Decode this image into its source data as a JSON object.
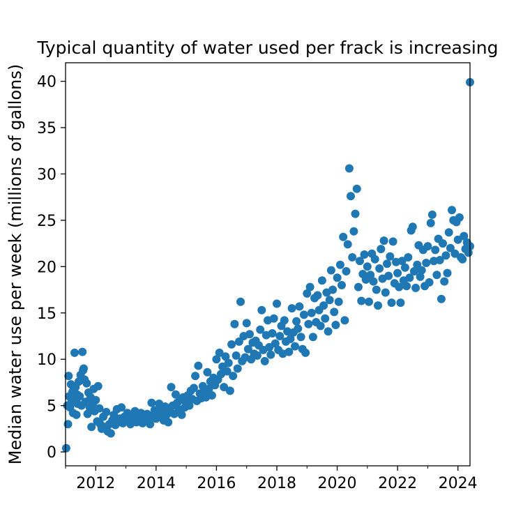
{
  "chart_data": {
    "type": "scatter",
    "title": "Typical quantity of water used per frack is increasing",
    "xlabel": "",
    "ylabel": "Median water use per week (millions of gallons)",
    "xlim": [
      2011.0,
      2024.4
    ],
    "ylim": [
      -1.5,
      42
    ],
    "x_ticks": [
      2012,
      2014,
      2016,
      2018,
      2020,
      2022,
      2024
    ],
    "x_tick_labels": [
      "2012",
      "2014",
      "2016",
      "2018",
      "2020",
      "2022",
      "2024"
    ],
    "y_ticks": [
      0,
      5,
      10,
      15,
      20,
      25,
      30,
      35,
      40
    ],
    "y_tick_labels": [
      "0",
      "5",
      "10",
      "15",
      "20",
      "25",
      "30",
      "35",
      "40"
    ],
    "grid": false,
    "marker_color": "#1f77b4",
    "points": [
      [
        2011.02,
        0.4
      ],
      [
        2011.06,
        5.0
      ],
      [
        2011.08,
        3.0
      ],
      [
        2011.1,
        8.2
      ],
      [
        2011.12,
        6.0
      ],
      [
        2011.15,
        4.8
      ],
      [
        2011.18,
        7.3
      ],
      [
        2011.2,
        5.5
      ],
      [
        2011.23,
        6.5
      ],
      [
        2011.25,
        4.2
      ],
      [
        2011.28,
        5.8
      ],
      [
        2011.3,
        10.7
      ],
      [
        2011.33,
        7.0
      ],
      [
        2011.36,
        4.0
      ],
      [
        2011.38,
        6.2
      ],
      [
        2011.4,
        5.2
      ],
      [
        2011.44,
        7.6
      ],
      [
        2011.47,
        6.0
      ],
      [
        2011.5,
        8.3
      ],
      [
        2011.53,
        5.0
      ],
      [
        2011.56,
        10.8
      ],
      [
        2011.58,
        8.8
      ],
      [
        2011.6,
        9.0
      ],
      [
        2011.63,
        7.8
      ],
      [
        2011.66,
        5.4
      ],
      [
        2011.7,
        7.4
      ],
      [
        2011.73,
        4.1
      ],
      [
        2011.76,
        6.4
      ],
      [
        2011.8,
        4.8
      ],
      [
        2011.83,
        5.9
      ],
      [
        2011.86,
        2.7
      ],
      [
        2011.9,
        5.2
      ],
      [
        2011.93,
        6.8
      ],
      [
        2011.96,
        4.4
      ],
      [
        2012.0,
        5.6
      ],
      [
        2012.05,
        3.3
      ],
      [
        2012.08,
        7.1
      ],
      [
        2012.12,
        4.7
      ],
      [
        2012.15,
        3.0
      ],
      [
        2012.2,
        2.5
      ],
      [
        2012.25,
        3.8
      ],
      [
        2012.3,
        2.7
      ],
      [
        2012.35,
        4.3
      ],
      [
        2012.4,
        2.2
      ],
      [
        2012.45,
        3.0
      ],
      [
        2012.5,
        2.0
      ],
      [
        2012.55,
        3.4
      ],
      [
        2012.6,
        4.0
      ],
      [
        2012.65,
        2.9
      ],
      [
        2012.7,
        4.6
      ],
      [
        2012.75,
        3.2
      ],
      [
        2012.8,
        3.6
      ],
      [
        2012.85,
        4.8
      ],
      [
        2012.9,
        3.1
      ],
      [
        2012.95,
        3.8
      ],
      [
        2013.0,
        3.3
      ],
      [
        2013.05,
        4.2
      ],
      [
        2013.1,
        3.6
      ],
      [
        2013.15,
        3.0
      ],
      [
        2013.2,
        4.0
      ],
      [
        2013.25,
        3.5
      ],
      [
        2013.3,
        4.4
      ],
      [
        2013.35,
        3.2
      ],
      [
        2013.4,
        3.9
      ],
      [
        2013.45,
        3.4
      ],
      [
        2013.5,
        4.2
      ],
      [
        2013.55,
        3.1
      ],
      [
        2013.6,
        3.7
      ],
      [
        2013.65,
        3.3
      ],
      [
        2013.7,
        4.1
      ],
      [
        2013.75,
        3.5
      ],
      [
        2013.8,
        3.0
      ],
      [
        2013.85,
        5.3
      ],
      [
        2013.9,
        3.9
      ],
      [
        2013.95,
        4.5
      ],
      [
        2014.0,
        3.6
      ],
      [
        2014.05,
        4.3
      ],
      [
        2014.1,
        5.2
      ],
      [
        2014.15,
        3.8
      ],
      [
        2014.2,
        4.6
      ],
      [
        2014.25,
        3.4
      ],
      [
        2014.3,
        4.9
      ],
      [
        2014.35,
        4.0
      ],
      [
        2014.4,
        3.2
      ],
      [
        2014.45,
        4.4
      ],
      [
        2014.5,
        7.0
      ],
      [
        2014.55,
        5.0
      ],
      [
        2014.6,
        4.1
      ],
      [
        2014.65,
        6.2
      ],
      [
        2014.7,
        5.3
      ],
      [
        2014.75,
        4.6
      ],
      [
        2014.8,
        5.6
      ],
      [
        2014.85,
        4.0
      ],
      [
        2014.9,
        5.9
      ],
      [
        2014.95,
        4.8
      ],
      [
        2015.0,
        5.4
      ],
      [
        2015.05,
        6.1
      ],
      [
        2015.1,
        5.0
      ],
      [
        2015.15,
        6.6
      ],
      [
        2015.2,
        5.7
      ],
      [
        2015.25,
        6.9
      ],
      [
        2015.3,
        8.2
      ],
      [
        2015.35,
        5.5
      ],
      [
        2015.4,
        9.3
      ],
      [
        2015.45,
        6.3
      ],
      [
        2015.5,
        5.8
      ],
      [
        2015.55,
        7.1
      ],
      [
        2015.6,
        6.4
      ],
      [
        2015.65,
        5.9
      ],
      [
        2015.7,
        8.6
      ],
      [
        2015.75,
        6.8
      ],
      [
        2015.8,
        7.6
      ],
      [
        2015.85,
        6.1
      ],
      [
        2015.9,
        8.0
      ],
      [
        2015.95,
        7.2
      ],
      [
        2016.0,
        10.0
      ],
      [
        2016.05,
        7.8
      ],
      [
        2016.1,
        10.7
      ],
      [
        2016.15,
        8.4
      ],
      [
        2016.2,
        9.2
      ],
      [
        2016.25,
        7.0
      ],
      [
        2016.3,
        10.3
      ],
      [
        2016.35,
        8.7
      ],
      [
        2016.4,
        9.6
      ],
      [
        2016.45,
        6.6
      ],
      [
        2016.5,
        11.6
      ],
      [
        2016.55,
        8.2
      ],
      [
        2016.6,
        13.8
      ],
      [
        2016.65,
        10.4
      ],
      [
        2016.7,
        9.0
      ],
      [
        2016.75,
        11.9
      ],
      [
        2016.8,
        16.2
      ],
      [
        2016.85,
        9.8
      ],
      [
        2016.9,
        12.5
      ],
      [
        2016.95,
        10.2
      ],
      [
        2017.0,
        13.9
      ],
      [
        2017.05,
        11.1
      ],
      [
        2017.1,
        12.7
      ],
      [
        2017.15,
        10.0
      ],
      [
        2017.2,
        11.8
      ],
      [
        2017.25,
        10.6
      ],
      [
        2017.3,
        12.0
      ],
      [
        2017.35,
        10.4
      ],
      [
        2017.4,
        11.5
      ],
      [
        2017.45,
        13.2
      ],
      [
        2017.5,
        15.3
      ],
      [
        2017.55,
        11.0
      ],
      [
        2017.6,
        9.8
      ],
      [
        2017.65,
        12.6
      ],
      [
        2017.7,
        14.2
      ],
      [
        2017.75,
        11.3
      ],
      [
        2017.8,
        10.5
      ],
      [
        2017.85,
        12.8
      ],
      [
        2017.9,
        14.4
      ],
      [
        2017.95,
        11.7
      ],
      [
        2018.0,
        16.0
      ],
      [
        2018.05,
        11.0
      ],
      [
        2018.1,
        12.5
      ],
      [
        2018.15,
        13.6
      ],
      [
        2018.2,
        10.6
      ],
      [
        2018.25,
        14.2
      ],
      [
        2018.3,
        11.9
      ],
      [
        2018.35,
        13.0
      ],
      [
        2018.4,
        10.8
      ],
      [
        2018.45,
        12.2
      ],
      [
        2018.5,
        15.5
      ],
      [
        2018.55,
        12.9
      ],
      [
        2018.6,
        11.4
      ],
      [
        2018.65,
        14.1
      ],
      [
        2018.7,
        13.3
      ],
      [
        2018.75,
        15.7
      ],
      [
        2018.8,
        12.4
      ],
      [
        2018.85,
        11.1
      ],
      [
        2018.9,
        14.8
      ],
      [
        2018.95,
        10.7
      ],
      [
        2019.0,
        17.1
      ],
      [
        2019.05,
        13.8
      ],
      [
        2019.1,
        17.8
      ],
      [
        2019.15,
        15.0
      ],
      [
        2019.2,
        12.4
      ],
      [
        2019.25,
        16.6
      ],
      [
        2019.3,
        14.0
      ],
      [
        2019.35,
        16.9
      ],
      [
        2019.4,
        15.3
      ],
      [
        2019.45,
        13.6
      ],
      [
        2019.5,
        18.5
      ],
      [
        2019.55,
        15.8
      ],
      [
        2019.6,
        14.4
      ],
      [
        2019.65,
        17.2
      ],
      [
        2019.7,
        13.0
      ],
      [
        2019.75,
        16.4
      ],
      [
        2019.8,
        19.6
      ],
      [
        2019.85,
        17.5
      ],
      [
        2019.9,
        15.1
      ],
      [
        2019.95,
        13.7
      ],
      [
        2020.0,
        18.8
      ],
      [
        2020.05,
        16.2
      ],
      [
        2020.1,
        20.2
      ],
      [
        2020.15,
        18.0
      ],
      [
        2020.2,
        23.2
      ],
      [
        2020.25,
        14.2
      ],
      [
        2020.3,
        19.5
      ],
      [
        2020.35,
        22.4
      ],
      [
        2020.4,
        30.6
      ],
      [
        2020.45,
        27.6
      ],
      [
        2020.5,
        21.0
      ],
      [
        2020.55,
        23.8
      ],
      [
        2020.6,
        25.7
      ],
      [
        2020.65,
        28.4
      ],
      [
        2020.7,
        17.8
      ],
      [
        2020.75,
        20.6
      ],
      [
        2020.8,
        16.3
      ],
      [
        2020.85,
        19.2
      ],
      [
        2020.9,
        21.3
      ],
      [
        2020.95,
        18.6
      ],
      [
        2021.0,
        20.0
      ],
      [
        2021.05,
        16.2
      ],
      [
        2021.1,
        19.1
      ],
      [
        2021.15,
        21.4
      ],
      [
        2021.2,
        18.4
      ],
      [
        2021.25,
        20.8
      ],
      [
        2021.3,
        17.5
      ],
      [
        2021.35,
        15.8
      ],
      [
        2021.4,
        19.8
      ],
      [
        2021.45,
        21.9
      ],
      [
        2021.5,
        18.7
      ],
      [
        2021.55,
        22.8
      ],
      [
        2021.6,
        17.2
      ],
      [
        2021.65,
        20.3
      ],
      [
        2021.7,
        19.0
      ],
      [
        2021.75,
        21.1
      ],
      [
        2021.8,
        16.1
      ],
      [
        2021.85,
        22.7
      ],
      [
        2021.9,
        18.2
      ],
      [
        2021.95,
        20.5
      ],
      [
        2022.0,
        19.3
      ],
      [
        2022.05,
        17.8
      ],
      [
        2022.1,
        16.1
      ],
      [
        2022.15,
        20.6
      ],
      [
        2022.2,
        18.5
      ],
      [
        2022.25,
        19.9
      ],
      [
        2022.3,
        17.9
      ],
      [
        2022.35,
        21.0
      ],
      [
        2022.4,
        18.8
      ],
      [
        2022.45,
        23.9
      ],
      [
        2022.5,
        24.3
      ],
      [
        2022.55,
        19.5
      ],
      [
        2022.6,
        17.7
      ],
      [
        2022.65,
        20.2
      ],
      [
        2022.7,
        22.3
      ],
      [
        2022.75,
        18.9
      ],
      [
        2022.8,
        19.6
      ],
      [
        2022.85,
        21.8
      ],
      [
        2022.9,
        17.9
      ],
      [
        2022.95,
        20.4
      ],
      [
        2023.0,
        22.2
      ],
      [
        2023.05,
        18.3
      ],
      [
        2023.1,
        24.7
      ],
      [
        2023.15,
        25.6
      ],
      [
        2023.2,
        20.6
      ],
      [
        2023.25,
        21.8
      ],
      [
        2023.3,
        19.1
      ],
      [
        2023.35,
        23.0
      ],
      [
        2023.4,
        20.7
      ],
      [
        2023.45,
        16.5
      ],
      [
        2023.5,
        22.5
      ],
      [
        2023.55,
        18.4
      ],
      [
        2023.6,
        21.2
      ],
      [
        2023.65,
        19.3
      ],
      [
        2023.7,
        23.7
      ],
      [
        2023.75,
        22.0
      ],
      [
        2023.8,
        26.1
      ],
      [
        2023.85,
        25.0
      ],
      [
        2023.9,
        21.4
      ],
      [
        2023.95,
        24.8
      ],
      [
        2024.0,
        22.9
      ],
      [
        2024.05,
        25.3
      ],
      [
        2024.1,
        21.0
      ],
      [
        2024.15,
        20.8
      ],
      [
        2024.2,
        23.3
      ],
      [
        2024.25,
        21.9
      ],
      [
        2024.3,
        22.6
      ],
      [
        2024.35,
        21.5
      ],
      [
        2024.4,
        39.9
      ],
      [
        2024.4,
        22.2
      ]
    ]
  }
}
